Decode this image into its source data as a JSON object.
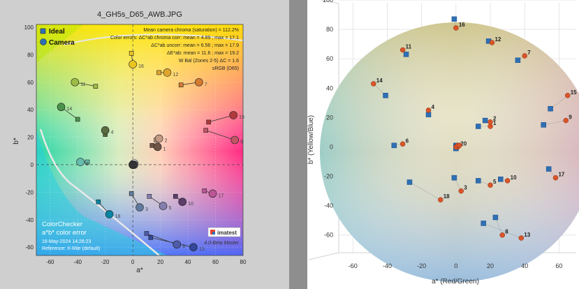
{
  "chart_data": [
    {
      "type": "scatter",
      "title": "4_GH5s_D65_AWB.JPG",
      "xlabel": "a*",
      "ylabel": "b*",
      "xlim": [
        -70,
        80
      ],
      "ylim": [
        -66,
        102
      ],
      "xticks": [
        -60,
        -40,
        -20,
        0,
        20,
        40,
        60,
        80
      ],
      "yticks": [
        -60,
        -40,
        -20,
        0,
        20,
        40,
        60,
        80,
        100
      ],
      "legend": {
        "position": "top-left",
        "entries": [
          {
            "name": "Ideal",
            "marker": "square"
          },
          {
            "name": "Camera",
            "marker": "circle"
          }
        ]
      },
      "annotations": {
        "chroma": "Mean camera chroma (saturation) = 112.2%",
        "line1": "Color errors: ΔC*ab chroma corr: mean = 4.89 ; max = 17.1",
        "line2": "ΔC*ab uncorr: mean = 6.56 ; max = 17.9",
        "line3": "ΔE*ab: mean = 11.6 ; max = 19.2",
        "line4": "W Bal (Zones 2-5) ΔC = 1.6",
        "line5": "sRGB (D65)"
      },
      "footer": {
        "title": "ColorChecker",
        "subtitle": "a*b* color error",
        "date": "16-May-2024 14:26:23",
        "reference": "Reference: X-Rite (default)",
        "version": "4.0-Beta  Master",
        "logo": "imatest"
      },
      "series": [
        {
          "name": "Ideal",
          "points": [
            {
              "id": "1",
              "a": 14,
              "b": 14
            },
            {
              "id": "2",
              "a": 17,
              "b": 18
            },
            {
              "id": "3",
              "a": -1,
              "b": -21
            },
            {
              "id": "4",
              "a": -20,
              "b": 22
            },
            {
              "id": "5",
              "a": 12,
              "b": -23
            },
            {
              "id": "6",
              "a": -33,
              "b": 2
            },
            {
              "id": "7",
              "a": 35,
              "b": 58
            },
            {
              "id": "8",
              "a": 10,
              "b": -50
            },
            {
              "id": "9",
              "a": 53,
              "b": 25
            },
            {
              "id": "10",
              "a": 31,
              "b": -23
            },
            {
              "id": "11",
              "a": -27,
              "b": 57
            },
            {
              "id": "12",
              "a": 19,
              "b": 67
            },
            {
              "id": "13",
              "a": 13,
              "b": -53
            },
            {
              "id": "14",
              "a": -40,
              "b": 33
            },
            {
              "id": "15",
              "a": 55,
              "b": 31
            },
            {
              "id": "16",
              "a": -1,
              "b": 81
            },
            {
              "id": "17",
              "a": 52,
              "b": -19
            },
            {
              "id": "18",
              "a": -25,
              "b": -27
            },
            {
              "id": "19",
              "a": 1,
              "b": 1
            },
            {
              "id": "20",
              "a": 0,
              "b": 0
            },
            {
              "id": "21",
              "a": 0,
              "b": 1
            },
            {
              "id": "22",
              "a": 0,
              "b": 0
            },
            {
              "id": "23",
              "a": 1,
              "b": 0
            },
            {
              "id": "24",
              "a": 0,
              "b": 0
            }
          ]
        },
        {
          "name": "Camera",
          "points": [
            {
              "id": "1",
              "a": 18,
              "b": 13
            },
            {
              "id": "2",
              "a": 19,
              "b": 19
            },
            {
              "id": "3",
              "a": 5,
              "b": -31
            },
            {
              "id": "4",
              "a": -20,
              "b": 25
            },
            {
              "id": "5",
              "a": 22,
              "b": -30
            },
            {
              "id": "6",
              "a": -38,
              "b": 2
            },
            {
              "id": "7",
              "a": 48,
              "b": 60
            },
            {
              "id": "8",
              "a": 32,
              "b": -58
            },
            {
              "id": "9",
              "a": 74,
              "b": 18
            },
            {
              "id": "10",
              "a": 36,
              "b": -27
            },
            {
              "id": "11",
              "a": -42,
              "b": 60
            },
            {
              "id": "12",
              "a": 25,
              "b": 67
            },
            {
              "id": "13",
              "a": 44,
              "b": -60
            },
            {
              "id": "14",
              "a": -52,
              "b": 42
            },
            {
              "id": "15",
              "a": 73,
              "b": 36
            },
            {
              "id": "16",
              "a": 0,
              "b": 73
            },
            {
              "id": "17",
              "a": 58,
              "b": -21
            },
            {
              "id": "18",
              "a": -17,
              "b": -36
            },
            {
              "id": "19",
              "a": 1,
              "b": 1
            },
            {
              "id": "20",
              "a": 0,
              "b": 0
            },
            {
              "id": "21",
              "a": 0,
              "b": 0
            },
            {
              "id": "22",
              "a": 0,
              "b": 0
            },
            {
              "id": "23",
              "a": 1,
              "b": 0
            },
            {
              "id": "24",
              "a": 0,
              "b": 0
            }
          ]
        }
      ]
    },
    {
      "type": "scatter",
      "title": "",
      "xlabel": "a* (Red/Green)",
      "ylabel": "b* (Yellow/Blue)",
      "xlim": [
        -65,
        70
      ],
      "ylim": [
        -72,
        100
      ],
      "xticks": [
        -60,
        -40,
        -20,
        0,
        20,
        40,
        60
      ],
      "yticks": [
        -60,
        -40,
        -20,
        0,
        20,
        40,
        60,
        80,
        100
      ],
      "series": [
        {
          "name": "Ideal",
          "points": [
            {
              "id": "1",
              "a": 13,
              "b": 14
            },
            {
              "id": "2",
              "a": 17,
              "b": 18
            },
            {
              "id": "3",
              "a": -1,
              "b": -21
            },
            {
              "id": "4",
              "a": -16,
              "b": 22
            },
            {
              "id": "5",
              "a": 13,
              "b": -23
            },
            {
              "id": "6",
              "a": -36,
              "b": 1
            },
            {
              "id": "7",
              "a": 36,
              "b": 59
            },
            {
              "id": "8",
              "a": 23,
              "b": -48
            },
            {
              "id": "9",
              "a": 51,
              "b": 15
            },
            {
              "id": "10",
              "a": 26,
              "b": -22
            },
            {
              "id": "11",
              "a": -29,
              "b": 63
            },
            {
              "id": "12",
              "a": 19,
              "b": 72
            },
            {
              "id": "13",
              "a": 16,
              "b": -52
            },
            {
              "id": "14",
              "a": -41,
              "b": 35
            },
            {
              "id": "15",
              "a": 55,
              "b": 26
            },
            {
              "id": "16",
              "a": -1,
              "b": 87
            },
            {
              "id": "17",
              "a": 54,
              "b": -15
            },
            {
              "id": "18",
              "a": -27,
              "b": -24
            },
            {
              "id": "19",
              "a": 0,
              "b": 1
            },
            {
              "id": "20",
              "a": 0,
              "b": 0
            },
            {
              "id": "21",
              "a": 0,
              "b": 0
            },
            {
              "id": "22",
              "a": 0,
              "b": 0
            },
            {
              "id": "23",
              "a": 0,
              "b": -1
            },
            {
              "id": "24",
              "a": 0,
              "b": -1
            }
          ]
        },
        {
          "name": "Camera",
          "points": [
            {
              "id": "1",
              "a": 20,
              "b": 14
            },
            {
              "id": "2",
              "a": 20,
              "b": 17
            },
            {
              "id": "3",
              "a": 3,
              "b": -30
            },
            {
              "id": "4",
              "a": -16,
              "b": 25
            },
            {
              "id": "5",
              "a": 20,
              "b": -26
            },
            {
              "id": "6",
              "a": -31,
              "b": 2
            },
            {
              "id": "7",
              "a": 40,
              "b": 62
            },
            {
              "id": "8",
              "a": 27,
              "b": -60
            },
            {
              "id": "9",
              "a": 64,
              "b": 18
            },
            {
              "id": "10",
              "a": 30,
              "b": -23
            },
            {
              "id": "11",
              "a": -31,
              "b": 66
            },
            {
              "id": "12",
              "a": 21,
              "b": 71
            },
            {
              "id": "13",
              "a": 38,
              "b": -62
            },
            {
              "id": "14",
              "a": -48,
              "b": 43
            },
            {
              "id": "15",
              "a": 65,
              "b": 35
            },
            {
              "id": "16",
              "a": 0,
              "b": 81
            },
            {
              "id": "17",
              "a": 58,
              "b": -21
            },
            {
              "id": "18",
              "a": -9,
              "b": -36
            },
            {
              "id": "19",
              "a": 2,
              "b": 1
            },
            {
              "id": "20",
              "a": 1,
              "b": 0
            },
            {
              "id": "21",
              "a": 1,
              "b": 0
            },
            {
              "id": "22",
              "a": 0,
              "b": 0
            },
            {
              "id": "23",
              "a": 1,
              "b": 1
            },
            {
              "id": "24",
              "a": 2,
              "b": 1
            }
          ]
        }
      ]
    }
  ],
  "colors": {
    "patch_colors": [
      "#6f5345",
      "#c49a85",
      "#5f7a9e",
      "#5b6c40",
      "#8380ae",
      "#65bdad",
      "#d57a31",
      "#4d5ba8",
      "#bf5563",
      "#5d3d6b",
      "#9dbb46",
      "#e0a52d",
      "#32469a",
      "#4b924b",
      "#b13a3b",
      "#eac51f",
      "#bb5595",
      "#0685a2"
    ],
    "ideal_marker": "#2f6fb5",
    "camera_marker": "#d9552a"
  }
}
